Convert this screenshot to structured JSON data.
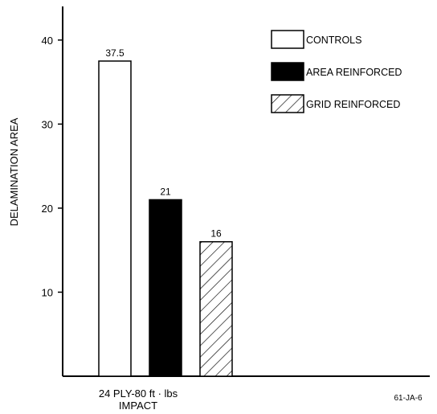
{
  "chart_data": {
    "type": "bar",
    "title": "",
    "xlabel": "",
    "ylabel": "DELAMINATION AREA",
    "ylim": [
      0,
      44
    ],
    "yticks": [
      10,
      20,
      30,
      40
    ],
    "category_label": [
      "24 PLY-80 ft · lbs",
      "IMPACT"
    ],
    "series": [
      {
        "name": "CONTROLS",
        "value": 37.5,
        "data_label": "37.5",
        "fill": "white"
      },
      {
        "name": "AREA REINFORCED",
        "value": 21,
        "data_label": "21",
        "fill": "black"
      },
      {
        "name": "GRID REINFORCED",
        "value": 16,
        "data_label": "16",
        "fill": "hatch"
      }
    ],
    "legend_position": "top-right",
    "grid": false
  },
  "figure_code": "61-JA-6"
}
